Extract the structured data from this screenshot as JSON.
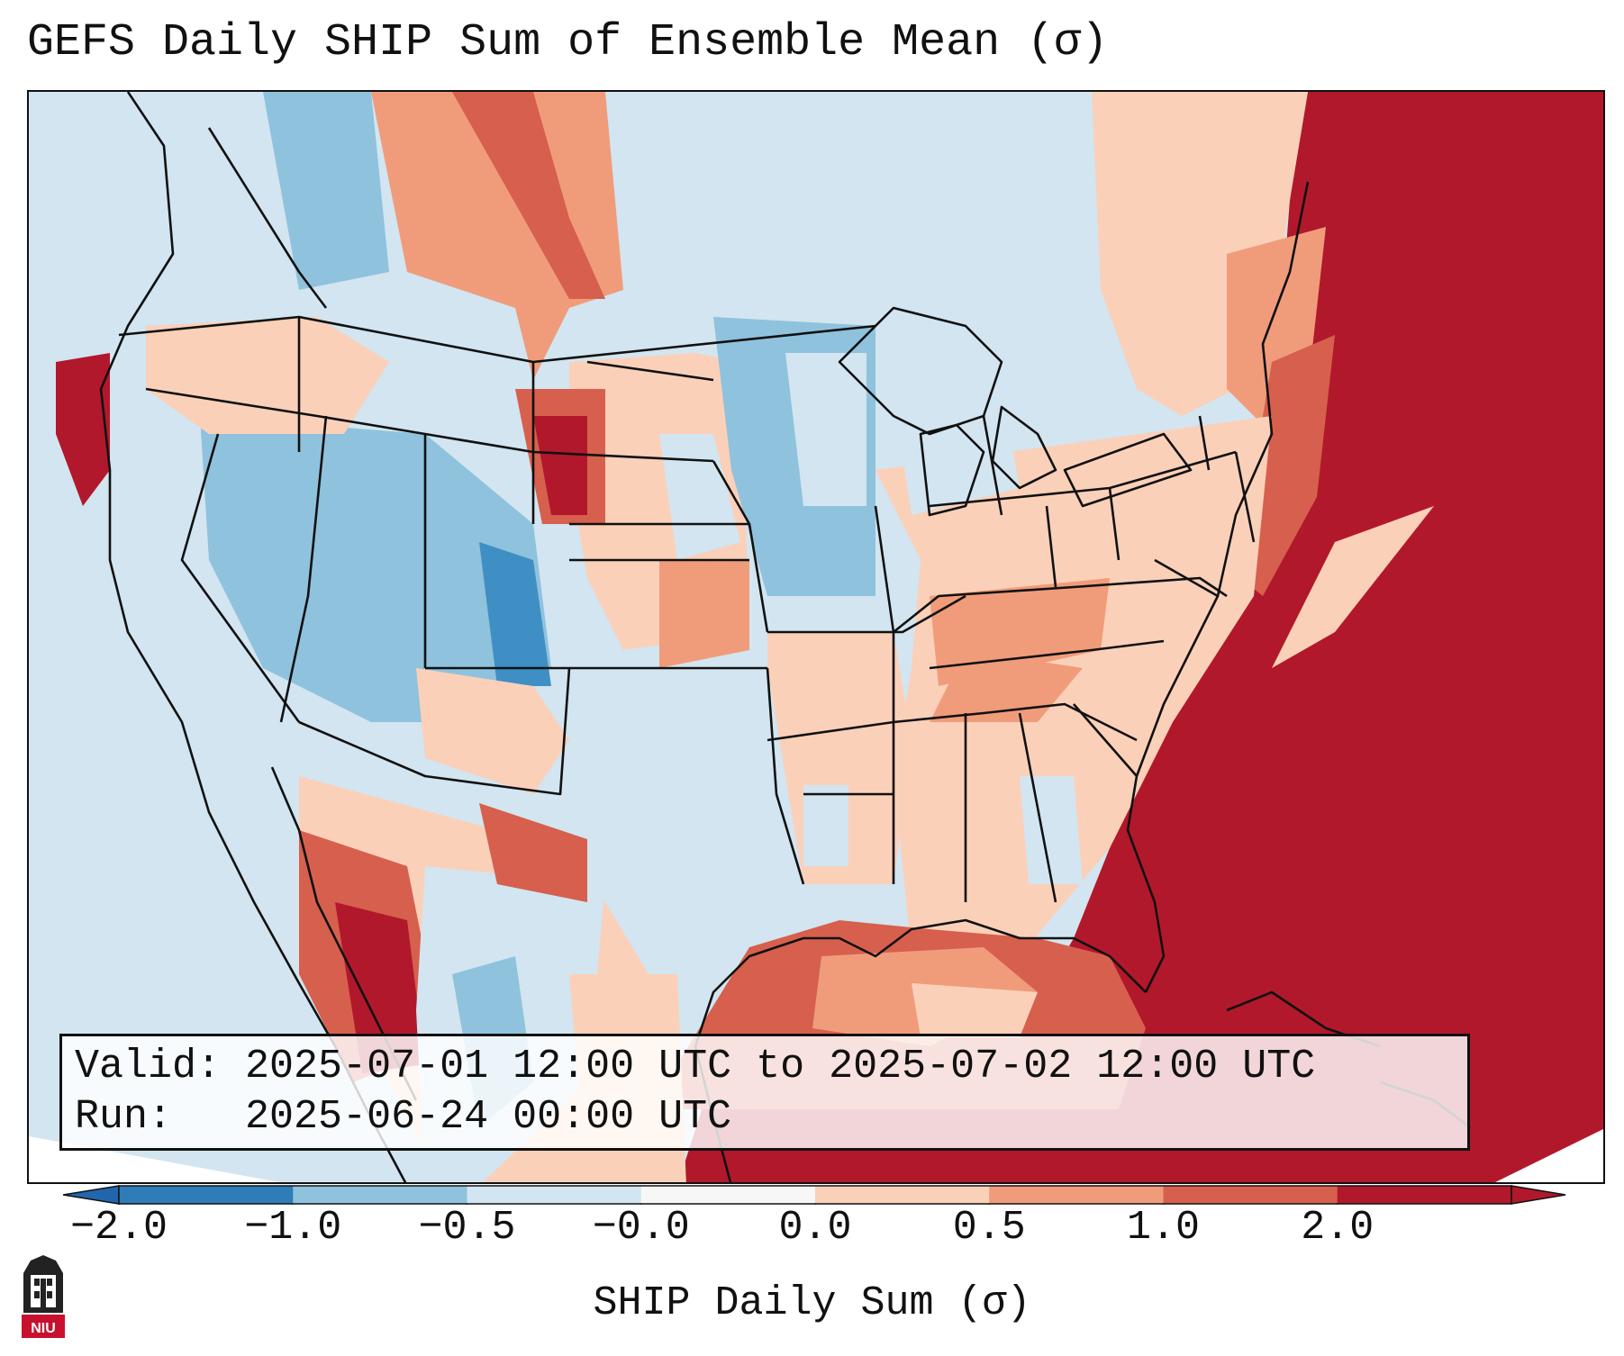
{
  "title": "GEFS Daily SHIP Sum of Ensemble Mean (σ)",
  "info": {
    "valid_label": "Valid:",
    "valid_value": "2025-07-01 12:00 UTC to 2025-07-02 12:00 UTC",
    "run_label": "Run:",
    "run_value": "2025-06-24 00:00 UTC"
  },
  "colorbar": {
    "label": "SHIP Daily Sum (σ)",
    "ticks": [
      "−2.0",
      "−1.0",
      "−0.5",
      "−0.0",
      "0.0",
      "0.5",
      "1.0",
      "2.0"
    ],
    "colors": [
      "#2e7cb8",
      "#8fc2dd",
      "#d2e5f0",
      "#f7f7f7",
      "#fbd0b9",
      "#f09c7b",
      "#d6604d",
      "#b2182b"
    ],
    "under_color": "#2166ac",
    "over_color": "#b2182b"
  },
  "logo": {
    "text": "NIU"
  },
  "map_colors": {
    "ocean": "#d2e5f0",
    "light_blue": "#d2e5f0",
    "mid_blue": "#8fc2dd",
    "dark_blue": "#3f8fc4",
    "light_red": "#fbd0b9",
    "mid_red": "#f09c7b",
    "red": "#d6604d",
    "dark_red": "#b2182b",
    "border": "#111111"
  }
}
